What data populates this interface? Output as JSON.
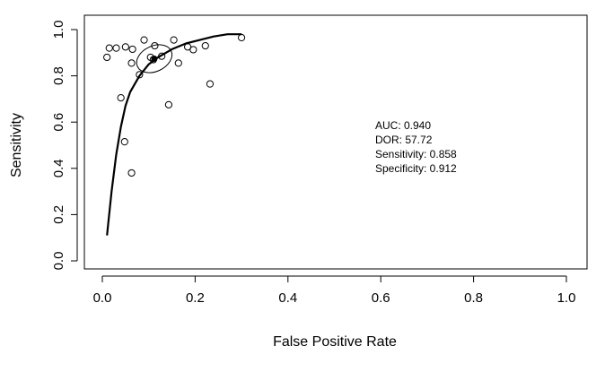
{
  "chart_data": {
    "type": "scatter",
    "xlabel": "False Positive Rate",
    "ylabel": "Sensitivity",
    "xlim": [
      0,
      1
    ],
    "ylim": [
      0,
      1
    ],
    "x_ticks": [
      "0.0",
      "0.2",
      "0.4",
      "0.6",
      "0.8",
      "1.0"
    ],
    "y_ticks": [
      "0.0",
      "0.2",
      "0.4",
      "0.6",
      "0.8",
      "1.0"
    ],
    "grid": false,
    "points": [
      {
        "x": 0.01,
        "y": 0.88
      },
      {
        "x": 0.015,
        "y": 0.92
      },
      {
        "x": 0.03,
        "y": 0.92
      },
      {
        "x": 0.05,
        "y": 0.925
      },
      {
        "x": 0.065,
        "y": 0.915
      },
      {
        "x": 0.09,
        "y": 0.955
      },
      {
        "x": 0.113,
        "y": 0.93
      },
      {
        "x": 0.154,
        "y": 0.955
      },
      {
        "x": 0.184,
        "y": 0.925
      },
      {
        "x": 0.196,
        "y": 0.913
      },
      {
        "x": 0.222,
        "y": 0.93
      },
      {
        "x": 0.3,
        "y": 0.965
      },
      {
        "x": 0.104,
        "y": 0.88
      },
      {
        "x": 0.11,
        "y": 0.87
      },
      {
        "x": 0.128,
        "y": 0.885
      },
      {
        "x": 0.063,
        "y": 0.855
      },
      {
        "x": 0.164,
        "y": 0.855
      },
      {
        "x": 0.08,
        "y": 0.805
      },
      {
        "x": 0.232,
        "y": 0.765
      },
      {
        "x": 0.04,
        "y": 0.705
      },
      {
        "x": 0.143,
        "y": 0.675
      },
      {
        "x": 0.048,
        "y": 0.515
      },
      {
        "x": 0.063,
        "y": 0.38
      }
    ],
    "curve": [
      {
        "x": 0.01,
        "y": 0.11
      },
      {
        "x": 0.02,
        "y": 0.3
      },
      {
        "x": 0.03,
        "y": 0.46
      },
      {
        "x": 0.04,
        "y": 0.58
      },
      {
        "x": 0.05,
        "y": 0.67
      },
      {
        "x": 0.06,
        "y": 0.73
      },
      {
        "x": 0.08,
        "y": 0.8
      },
      {
        "x": 0.1,
        "y": 0.85
      },
      {
        "x": 0.12,
        "y": 0.88
      },
      {
        "x": 0.15,
        "y": 0.915
      },
      {
        "x": 0.18,
        "y": 0.94
      },
      {
        "x": 0.21,
        "y": 0.955
      },
      {
        "x": 0.24,
        "y": 0.97
      },
      {
        "x": 0.27,
        "y": 0.98
      },
      {
        "x": 0.3,
        "y": 0.98
      }
    ],
    "summary_point": {
      "x": 0.112,
      "y": 0.874
    },
    "confidence_region": {
      "x_halfwidth": 0.04,
      "y_halfwidth": 0.055
    },
    "annotations": [
      "AUC: 0.940",
      "DOR: 57.72",
      "Sensitivity: 0.858",
      "Specificity: 0.912"
    ]
  }
}
